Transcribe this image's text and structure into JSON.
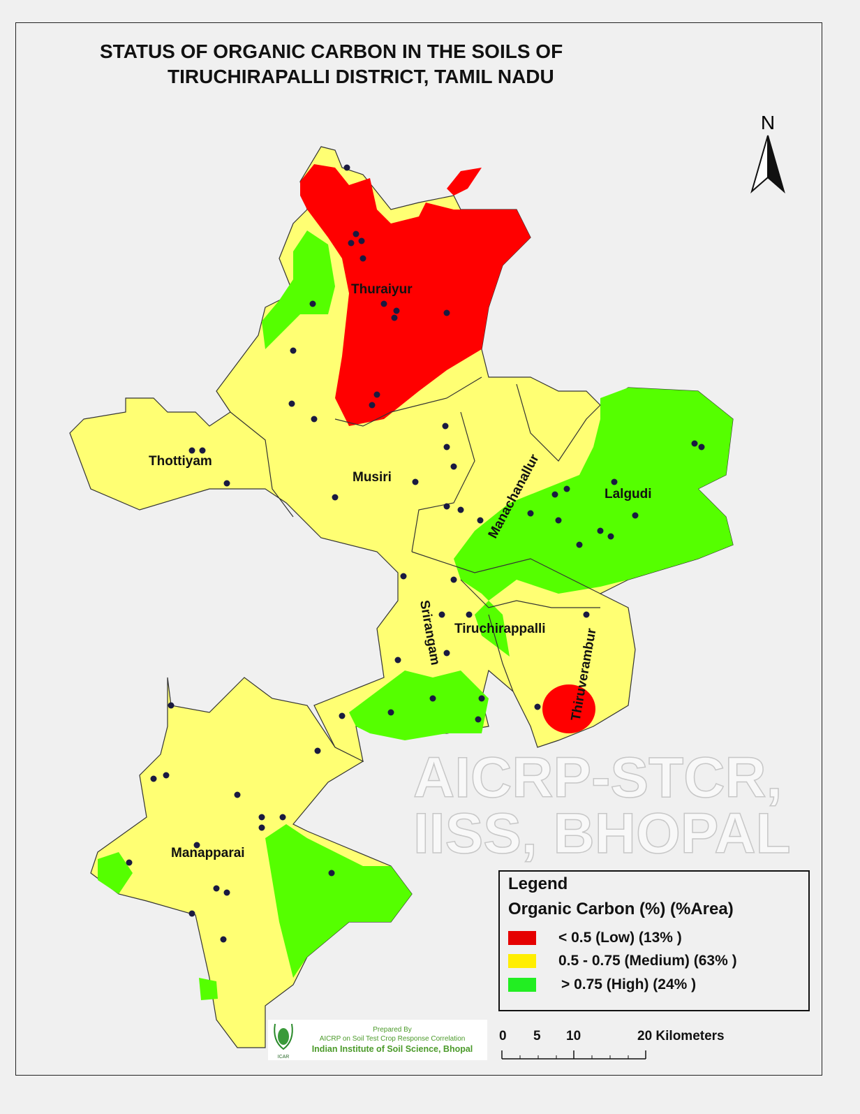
{
  "title": {
    "line1": "STATUS OF ORGANIC CARBON  IN THE SOILS OF",
    "line2": "TIRUCHIRAPALLI DISTRICT, TAMIL NADU"
  },
  "north_arrow": {
    "label": "N",
    "icon": "north-arrow-icon"
  },
  "blocks": [
    "Thuraiyur",
    "Thottiyam",
    "Musiri",
    "Manachanallur",
    "Lalgudi",
    "Srirangam",
    "Tiruchirappalli",
    "Thiruverambur",
    "Manapparai"
  ],
  "watermark": "AICRP-STCR, IISS, BHOPAL",
  "legend": {
    "heading": "Legend",
    "subheading": "Organic Carbon (%) (%Area)",
    "items": [
      {
        "label": "< 0.5 (Low)  (13% )",
        "color": "#ff0000",
        "class": "Low",
        "area_percent": 13
      },
      {
        "label": "0.5 - 0.75 (Medium) (63% )",
        "color": "#ffff73",
        "class": "Medium",
        "area_percent": 63
      },
      {
        "label": "> 0.75 (High) (24% )",
        "color": "#55ff00",
        "class": "High",
        "area_percent": 24
      }
    ]
  },
  "scale_bar": {
    "ticks": [
      "0",
      "5",
      "10",
      "20 Kilometers"
    ]
  },
  "credit": {
    "line1": "Prepared By",
    "line2": "AICRP on Soil Test Crop Response Correlation",
    "line3": "Indian Institute of Soil Science, Bhopal",
    "logo_text": "ICAR"
  },
  "colors": {
    "sample_point": "#1a1a40",
    "background": "#f0f0f0"
  }
}
